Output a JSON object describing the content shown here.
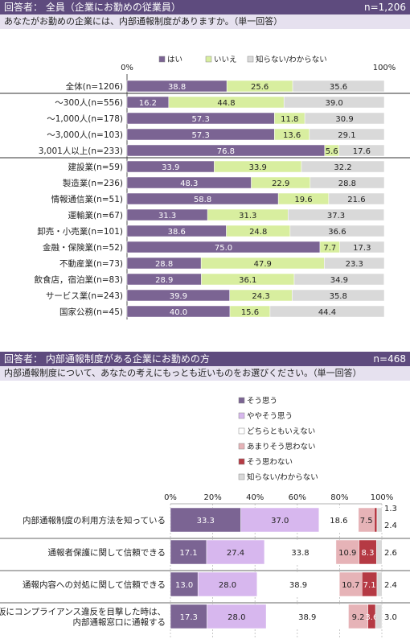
{
  "section1": {
    "header_title": "回答者： 全員（企業にお勤めの従業員）",
    "header_n": "n=1,206",
    "question": "あなたがお勤めの企業には、内部通報制度がありますか。（単一回答）"
  },
  "section2": {
    "header_title": "回答者： 内部通報制度がある企業にお勤めの方",
    "header_n": "n=468",
    "question": "内部通報制度について、あなたの考えにもっとも近いものをお選びください。（単一回答）"
  },
  "chart_data": [
    {
      "type": "bar",
      "orientation": "horizontal",
      "stacked": "100%",
      "xlim": [
        0,
        100
      ],
      "x_tick_labels": [
        "0%",
        "100%"
      ],
      "legend_position": "top",
      "categories": [
        "全体(n=1206)",
        "～300人(n=556)",
        "～1,000人(n=178)",
        "～3,000人(n=103)",
        "3,001人以上(n=233)",
        "建設業(n=59)",
        "製造業(n=236)",
        "情報通信業(n=51)",
        "運輸業(n=67)",
        "卸売・小売業(n=101)",
        "金融・保険業(n=52)",
        "不動産業(n=73)",
        "飲食店，宿泊業(n=83)",
        "サービス業(n=243)",
        "国家公務(n=45)"
      ],
      "series": [
        {
          "name": "はい",
          "color": "#7b6493",
          "values": [
            38.8,
            16.2,
            57.3,
            57.3,
            76.8,
            33.9,
            48.3,
            58.8,
            31.3,
            38.6,
            75.0,
            28.8,
            28.9,
            39.9,
            40.0
          ]
        },
        {
          "name": "いいえ",
          "color": "#d8ee9f",
          "values": [
            25.6,
            44.8,
            11.8,
            13.6,
            5.6,
            33.9,
            22.9,
            19.6,
            31.3,
            24.8,
            7.7,
            47.9,
            36.1,
            24.3,
            15.6
          ]
        },
        {
          "name": "知らない/わからない",
          "color": "#d9d9d9",
          "values": [
            35.6,
            39.0,
            30.9,
            29.1,
            17.6,
            32.2,
            28.8,
            21.6,
            37.3,
            36.6,
            17.3,
            23.3,
            34.9,
            35.8,
            44.4
          ]
        }
      ]
    },
    {
      "type": "bar",
      "orientation": "horizontal",
      "stacked": "100%",
      "xlim": [
        0,
        100
      ],
      "x_tick_labels": [
        "0%",
        "20%",
        "40%",
        "60%",
        "80%",
        "100%"
      ],
      "grid": true,
      "legend_position": "right",
      "categories": [
        "内部通報制度の利用方法を知っている",
        "通報者保護に関して信頼できる",
        "通報内容への対処に関して信頼できる",
        "仮にコンプライアンス違反を目撃した時は、\n内部通報窓口に通報する"
      ],
      "series": [
        {
          "name": "そう思う",
          "color": "#7b6493",
          "values": [
            33.3,
            17.1,
            13.0,
            17.3
          ]
        },
        {
          "name": "ややそう思う",
          "color": "#d7b7ee",
          "values": [
            37.0,
            27.4,
            28.0,
            28.0
          ]
        },
        {
          "name": "どちらともいえない",
          "color": "#ffffff",
          "values": [
            18.6,
            33.8,
            38.9,
            38.9
          ]
        },
        {
          "name": "あまりそう思わない",
          "color": "#e6b3b7",
          "values": [
            7.5,
            10.9,
            10.7,
            9.2
          ]
        },
        {
          "name": "そう思わない",
          "color": "#b53a44",
          "values": [
            1.3,
            8.3,
            7.1,
            3.6
          ]
        },
        {
          "name": "知らない/わからない",
          "color": "#d9d9d9",
          "values": [
            2.4,
            2.6,
            2.4,
            3.0
          ]
        }
      ]
    }
  ]
}
